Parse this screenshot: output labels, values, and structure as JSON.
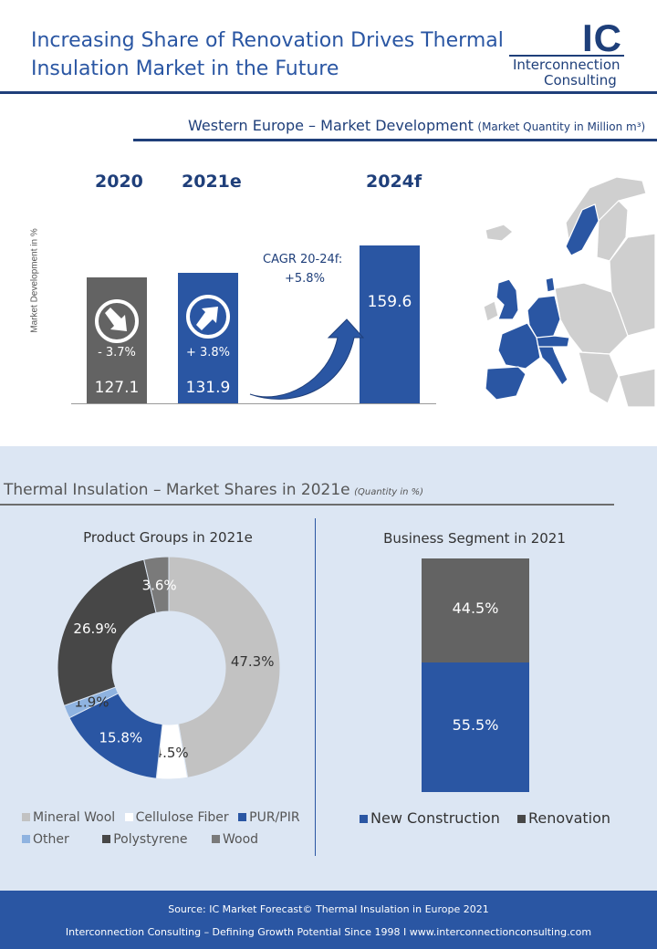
{
  "header": {
    "title_line1": "Increasing Share of Renovation Drives Thermal",
    "title_line2": "Insulation Market in the Future",
    "logo_mark": "IC",
    "logo_line1": "Interconnection",
    "logo_line2": "Consulting"
  },
  "section1": {
    "heading": "Western Europe – Market Development",
    "heading_note": "(Market Quantity in Million m³)",
    "ylabel": "Market Development in %",
    "cagr_line1": "CAGR 20-24f:",
    "cagr_line2": "+5.8%"
  },
  "section2": {
    "heading": "Thermal Insulation – Market Shares in 2021e",
    "heading_note": "(Quantity in %)"
  },
  "footer": {
    "line1": "Source: IC Market Forecast© Thermal Insulation in Europe 2021",
    "line2": "Interconnection Consulting – Defining Growth Potential Since 1998 I www.interconnectionconsulting.com"
  },
  "colors": {
    "brand_blue": "#2a56a3",
    "dark_blue": "#1f3f7a",
    "gray": "#636363",
    "light_gray": "#c2c2c2",
    "dark_gray": "#474747",
    "light_blue": "#8fb3e0",
    "panel_bg": "#dce6f3"
  },
  "chart_data": [
    {
      "type": "bar",
      "title": "",
      "categories": [
        "2020",
        "2021e",
        "2024f"
      ],
      "values": [
        127.1,
        131.9,
        159.6
      ],
      "value_labels": [
        "127.1",
        "131.9",
        "159.6"
      ],
      "change_labels": [
        "- 3.7%",
        "+ 3.8%",
        ""
      ],
      "trend_icons": [
        "arrow-down-right-icon",
        "arrow-up-right-icon",
        ""
      ],
      "bar_colors": [
        "#636363",
        "#2a56a3",
        "#2a56a3"
      ],
      "ylabel": "Market Development in %",
      "ylim": [
        0,
        175
      ]
    },
    {
      "type": "pie",
      "title": "Product Groups in 2021e",
      "labels": [
        "Mineral Wool",
        "Cellulose Fiber",
        "PUR/PIR",
        "Other",
        "Polystyrene",
        "Wood"
      ],
      "values": [
        47.3,
        4.5,
        15.8,
        1.9,
        26.9,
        3.6
      ],
      "value_labels": [
        "47.3%",
        "4.5%",
        "15.8%",
        "1.9%",
        "26.9%",
        "3.6%"
      ],
      "colors": [
        "#c2c2c2",
        "#ffffff",
        "#2a56a3",
        "#8fb3e0",
        "#474747",
        "#7a7a7a"
      ],
      "donut": true
    },
    {
      "type": "bar",
      "title": "Business Segment in 2021",
      "stacked": true,
      "series": [
        {
          "name": "New Construction",
          "value": 55.5,
          "label": "55.5%",
          "color": "#2a56a3"
        },
        {
          "name": "Renovation",
          "value": 44.5,
          "label": "44.5%",
          "color": "#636363"
        }
      ]
    }
  ]
}
